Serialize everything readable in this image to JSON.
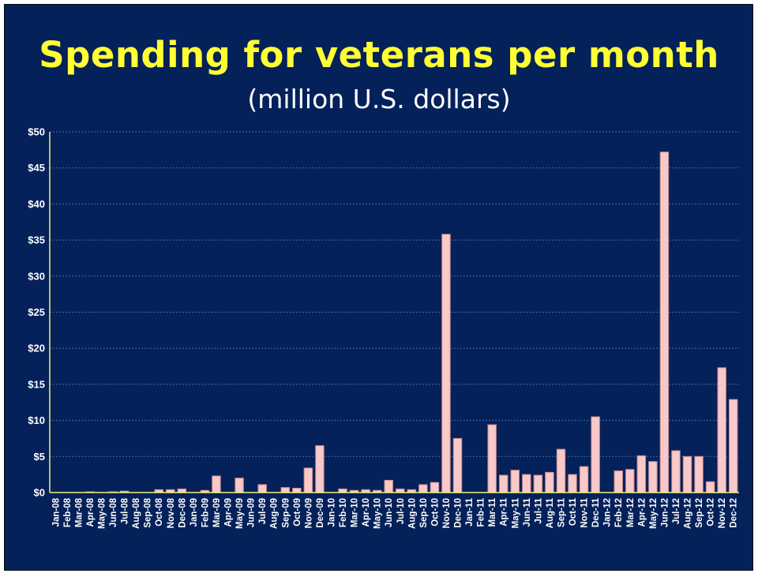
{
  "header": {
    "title": "Spending for veterans per month",
    "subtitle": "(million U.S. dollars)"
  },
  "colors": {
    "background": "#04215a",
    "title": "#ffff33",
    "bar_fill": "#f9c8c8",
    "bar_edge": "#c48a8a",
    "axis": "#f2f277",
    "grid": "#3d6fb3"
  },
  "chart_data": {
    "type": "bar",
    "title": "Spending for veterans per month",
    "subtitle": "(million U.S. dollars)",
    "xlabel": "",
    "ylabel": "",
    "ylim": [
      0,
      50
    ],
    "grid": true,
    "yticks": [
      0,
      5,
      10,
      15,
      20,
      25,
      30,
      35,
      40,
      45,
      50
    ],
    "ytick_labels": [
      "$0",
      "$5",
      "$10",
      "$15",
      "$20",
      "$25",
      "$30",
      "$35",
      "$40",
      "$45",
      "$50"
    ],
    "categories": [
      "Jan-08",
      "Feb-08",
      "Mar-08",
      "Apr-08",
      "May-08",
      "Jun-08",
      "Jul-08",
      "Aug-08",
      "Sep-08",
      "Oct-08",
      "Nov-08",
      "Dec-08",
      "Jan-09",
      "Feb-09",
      "Mar-09",
      "Apr-09",
      "May-09",
      "Jun-09",
      "Jul-09",
      "Aug-09",
      "Sep-09",
      "Oct-09",
      "Nov-09",
      "Dec-09",
      "Jan-10",
      "Feb-10",
      "Mar-10",
      "Apr-10",
      "May-10",
      "Jun-10",
      "Jul-10",
      "Aug-10",
      "Sep-10",
      "Oct-10",
      "Nov-10",
      "Dec-10",
      "Jan-11",
      "Feb-11",
      "Mar-11",
      "Apr-11",
      "May-11",
      "Jun-11",
      "Jul-11",
      "Aug-11",
      "Sep-11",
      "Oct-11",
      "Nov-11",
      "Dec-11",
      "Jan-12",
      "Feb-12",
      "Mar-12",
      "Apr-12",
      "May-12",
      "Jun-12",
      "Jul-12",
      "Aug-12",
      "Sep-12",
      "Oct-12",
      "Nov-12",
      "Dec-12"
    ],
    "values": [
      0,
      0,
      0,
      0.1,
      0,
      0.1,
      0.2,
      0,
      0,
      0.4,
      0.4,
      0.5,
      0,
      0.3,
      2.3,
      0,
      2.0,
      0,
      1.1,
      0,
      0.7,
      0.6,
      3.4,
      6.5,
      0,
      0.5,
      0.3,
      0.4,
      0.3,
      1.7,
      0.5,
      0.4,
      1.1,
      1.4,
      35.8,
      7.5,
      0,
      0,
      9.4,
      2.4,
      3.1,
      2.5,
      2.4,
      2.8,
      6.0,
      2.5,
      3.6,
      10.5,
      0,
      3.0,
      3.2,
      5.1,
      4.3,
      47.2,
      5.8,
      5.0,
      5.0,
      1.5,
      17.3,
      12.9
    ]
  }
}
